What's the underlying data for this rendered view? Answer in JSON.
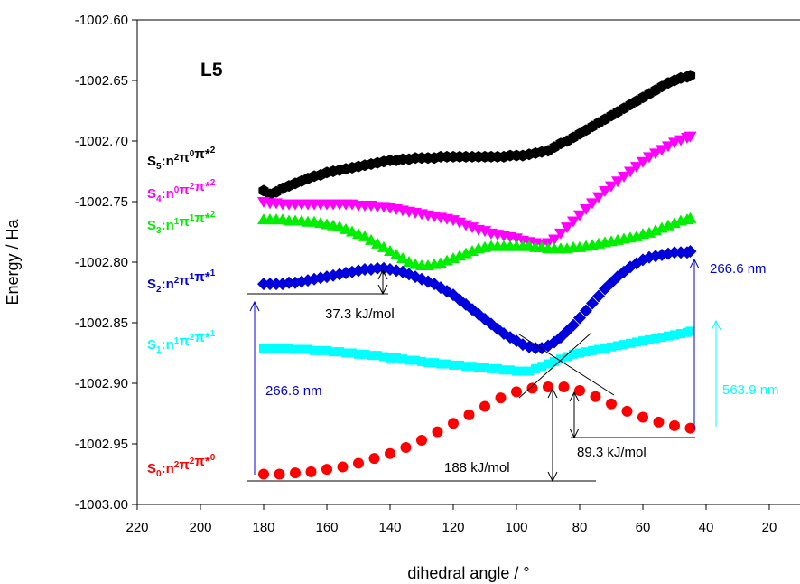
{
  "chart_data": {
    "type": "scatter",
    "title": "",
    "panel_label": "L5",
    "xlabel": "dihedral angle / °",
    "ylabel": "Energy / Ha",
    "xlim": [
      220,
      10
    ],
    "ylim": [
      -1003.0,
      -1002.6
    ],
    "x_reversed": true,
    "xticks": [
      220,
      200,
      180,
      160,
      140,
      120,
      100,
      80,
      60,
      40,
      20
    ],
    "xtick_labels": [
      "220",
      "200",
      "180",
      "160",
      "140",
      "120",
      "100",
      "80",
      "60",
      "40",
      "20"
    ],
    "yticks": [
      -1002.6,
      -1002.65,
      -1002.7,
      -1002.75,
      -1002.8,
      -1002.85,
      -1002.9,
      -1002.95,
      -1003.0
    ],
    "ytick_labels": [
      "-1002.60",
      "-1002.65",
      "-1002.70",
      "-1002.75",
      "-1002.80",
      "-1002.85",
      "-1002.90",
      "-1002.95",
      "-1003.00"
    ],
    "grid": false,
    "legend": "none",
    "series": [
      {
        "key": "S5",
        "label_main": "S",
        "label_sub": "5",
        "label_parts": [
          [
            ":n",
            "2"
          ],
          [
            "π",
            "0"
          ],
          [
            "π*",
            "2"
          ]
        ],
        "color": "#000000",
        "marker": "hexagon",
        "x": [
          180,
          178,
          176,
          174,
          172,
          170,
          168,
          166,
          164,
          162,
          160,
          158,
          156,
          154,
          152,
          150,
          148,
          146,
          144,
          142,
          140,
          138,
          136,
          134,
          132,
          130,
          128,
          126,
          124,
          122,
          120,
          118,
          116,
          114,
          112,
          110,
          108,
          106,
          104,
          102,
          100,
          98,
          96,
          94,
          92,
          90,
          88,
          86,
          84,
          82,
          80,
          78,
          76,
          74,
          72,
          70,
          68,
          66,
          64,
          62,
          60,
          58,
          56,
          54,
          52,
          50,
          48,
          46,
          45
        ],
        "y": [
          -1002.741,
          -1002.744,
          -1002.742,
          -1002.739,
          -1002.737,
          -1002.735,
          -1002.733,
          -1002.731,
          -1002.729,
          -1002.728,
          -1002.726,
          -1002.725,
          -1002.724,
          -1002.723,
          -1002.722,
          -1002.721,
          -1002.72,
          -1002.719,
          -1002.718,
          -1002.717,
          -1002.716,
          -1002.716,
          -1002.715,
          -1002.715,
          -1002.714,
          -1002.714,
          -1002.714,
          -1002.714,
          -1002.713,
          -1002.713,
          -1002.713,
          -1002.713,
          -1002.713,
          -1002.713,
          -1002.713,
          -1002.713,
          -1002.713,
          -1002.713,
          -1002.713,
          -1002.712,
          -1002.712,
          -1002.712,
          -1002.711,
          -1002.71,
          -1002.709,
          -1002.708,
          -1002.705,
          -1002.702,
          -1002.7,
          -1002.697,
          -1002.694,
          -1002.691,
          -1002.688,
          -1002.685,
          -1002.682,
          -1002.679,
          -1002.676,
          -1002.673,
          -1002.67,
          -1002.667,
          -1002.664,
          -1002.661,
          -1002.658,
          -1002.655,
          -1002.652,
          -1002.65,
          -1002.648,
          -1002.647,
          -1002.646
        ]
      },
      {
        "key": "S4",
        "label_main": "S",
        "label_sub": "4",
        "label_parts": [
          [
            ":n",
            "0"
          ],
          [
            "π",
            "2"
          ],
          [
            "π*",
            "2"
          ]
        ],
        "color": "#ff00ff",
        "marker": "triangle-down",
        "x": [
          180,
          178,
          176,
          174,
          172,
          170,
          168,
          166,
          164,
          162,
          160,
          158,
          156,
          154,
          152,
          150,
          148,
          146,
          144,
          142,
          140,
          138,
          136,
          134,
          132,
          130,
          128,
          126,
          124,
          122,
          120,
          118,
          116,
          114,
          112,
          110,
          108,
          106,
          104,
          102,
          100,
          98,
          96,
          94,
          92,
          90,
          88,
          86,
          84,
          82,
          80,
          78,
          76,
          74,
          72,
          70,
          68,
          66,
          64,
          62,
          60,
          58,
          56,
          54,
          52,
          50,
          48,
          46,
          45
        ],
        "y": [
          -1002.75,
          -1002.751,
          -1002.751,
          -1002.752,
          -1002.752,
          -1002.752,
          -1002.752,
          -1002.752,
          -1002.752,
          -1002.752,
          -1002.752,
          -1002.752,
          -1002.752,
          -1002.752,
          -1002.752,
          -1002.753,
          -1002.753,
          -1002.753,
          -1002.754,
          -1002.754,
          -1002.755,
          -1002.756,
          -1002.757,
          -1002.758,
          -1002.759,
          -1002.76,
          -1002.761,
          -1002.762,
          -1002.763,
          -1002.764,
          -1002.765,
          -1002.767,
          -1002.769,
          -1002.771,
          -1002.773,
          -1002.774,
          -1002.776,
          -1002.777,
          -1002.778,
          -1002.779,
          -1002.78,
          -1002.782,
          -1002.783,
          -1002.784,
          -1002.785,
          -1002.784,
          -1002.781,
          -1002.776,
          -1002.771,
          -1002.766,
          -1002.761,
          -1002.756,
          -1002.751,
          -1002.746,
          -1002.741,
          -1002.737,
          -1002.733,
          -1002.729,
          -1002.725,
          -1002.721,
          -1002.717,
          -1002.713,
          -1002.71,
          -1002.707,
          -1002.704,
          -1002.701,
          -1002.699,
          -1002.697,
          -1002.696
        ]
      },
      {
        "key": "S3",
        "label_main": "S",
        "label_sub": "3",
        "label_parts": [
          [
            ":n",
            "1"
          ],
          [
            "π",
            "1"
          ],
          [
            "π*",
            "2"
          ]
        ],
        "color": "#00ee00",
        "marker": "triangle-up",
        "x": [
          180,
          178,
          176,
          174,
          172,
          170,
          168,
          166,
          164,
          162,
          160,
          158,
          156,
          154,
          152,
          150,
          148,
          146,
          144,
          142,
          140,
          138,
          136,
          134,
          132,
          130,
          128,
          126,
          124,
          122,
          120,
          118,
          116,
          114,
          112,
          110,
          108,
          106,
          104,
          102,
          100,
          98,
          96,
          94,
          92,
          90,
          88,
          86,
          84,
          82,
          80,
          78,
          76,
          74,
          72,
          70,
          68,
          66,
          64,
          62,
          60,
          58,
          56,
          54,
          52,
          50,
          48,
          46,
          45
        ],
        "y": [
          -1002.765,
          -1002.765,
          -1002.765,
          -1002.765,
          -1002.766,
          -1002.766,
          -1002.766,
          -1002.767,
          -1002.767,
          -1002.768,
          -1002.769,
          -1002.77,
          -1002.771,
          -1002.773,
          -1002.775,
          -1002.777,
          -1002.779,
          -1002.782,
          -1002.785,
          -1002.788,
          -1002.791,
          -1002.794,
          -1002.797,
          -1002.8,
          -1002.802,
          -1002.803,
          -1002.803,
          -1002.802,
          -1002.801,
          -1002.799,
          -1002.797,
          -1002.795,
          -1002.793,
          -1002.791,
          -1002.789,
          -1002.788,
          -1002.787,
          -1002.787,
          -1002.787,
          -1002.787,
          -1002.787,
          -1002.787,
          -1002.787,
          -1002.788,
          -1002.788,
          -1002.789,
          -1002.789,
          -1002.789,
          -1002.789,
          -1002.788,
          -1002.788,
          -1002.787,
          -1002.786,
          -1002.785,
          -1002.784,
          -1002.783,
          -1002.782,
          -1002.781,
          -1002.78,
          -1002.779,
          -1002.777,
          -1002.776,
          -1002.774,
          -1002.772,
          -1002.77,
          -1002.768,
          -1002.766,
          -1002.765,
          -1002.764
        ]
      },
      {
        "key": "S2",
        "label_main": "S",
        "label_sub": "2",
        "label_parts": [
          [
            ":n",
            "2"
          ],
          [
            "π",
            "1"
          ],
          [
            "π*",
            "1"
          ]
        ],
        "color": "#0000dd",
        "marker": "diamond",
        "x": [
          180,
          178,
          176,
          174,
          172,
          170,
          168,
          166,
          164,
          162,
          160,
          158,
          156,
          154,
          152,
          150,
          148,
          146,
          144,
          142,
          140,
          138,
          136,
          134,
          132,
          130,
          128,
          126,
          124,
          122,
          120,
          118,
          116,
          114,
          112,
          110,
          108,
          106,
          104,
          102,
          100,
          98,
          96,
          94,
          92,
          90,
          88,
          86,
          84,
          82,
          80,
          78,
          76,
          74,
          72,
          70,
          68,
          66,
          64,
          62,
          60,
          58,
          56,
          54,
          52,
          50,
          48,
          46,
          45
        ],
        "y": [
          -1002.818,
          -1002.818,
          -1002.818,
          -1002.818,
          -1002.817,
          -1002.817,
          -1002.816,
          -1002.815,
          -1002.814,
          -1002.813,
          -1002.812,
          -1002.811,
          -1002.81,
          -1002.809,
          -1002.808,
          -1002.807,
          -1002.806,
          -1002.806,
          -1002.805,
          -1002.805,
          -1002.806,
          -1002.807,
          -1002.808,
          -1002.81,
          -1002.812,
          -1002.814,
          -1002.816,
          -1002.818,
          -1002.821,
          -1002.824,
          -1002.827,
          -1002.831,
          -1002.835,
          -1002.839,
          -1002.843,
          -1002.847,
          -1002.851,
          -1002.855,
          -1002.859,
          -1002.862,
          -1002.865,
          -1002.868,
          -1002.87,
          -1002.871,
          -1002.871,
          -1002.869,
          -1002.866,
          -1002.862,
          -1002.857,
          -1002.852,
          -1002.846,
          -1002.84,
          -1002.834,
          -1002.828,
          -1002.822,
          -1002.817,
          -1002.812,
          -1002.808,
          -1002.804,
          -1002.801,
          -1002.798,
          -1002.796,
          -1002.795,
          -1002.794,
          -1002.793,
          -1002.792,
          -1002.792,
          -1002.792,
          -1002.791
        ]
      },
      {
        "key": "S1",
        "label_main": "S",
        "label_sub": "1",
        "label_parts": [
          [
            ":n",
            "1"
          ],
          [
            "π",
            "2"
          ],
          [
            "π*",
            "1"
          ]
        ],
        "color": "#00ffff",
        "marker": "square",
        "x": [
          180,
          178,
          176,
          174,
          172,
          170,
          168,
          166,
          164,
          162,
          160,
          158,
          156,
          154,
          152,
          150,
          148,
          146,
          144,
          142,
          140,
          138,
          136,
          134,
          132,
          130,
          128,
          126,
          124,
          122,
          120,
          118,
          116,
          114,
          112,
          110,
          108,
          106,
          104,
          102,
          100,
          98,
          96,
          94,
          92,
          90,
          88,
          86,
          84,
          82,
          80,
          78,
          76,
          74,
          72,
          70,
          68,
          66,
          64,
          62,
          60,
          58,
          56,
          54,
          52,
          50,
          48,
          46,
          45
        ],
        "y": [
          -1002.871,
          -1002.871,
          -1002.871,
          -1002.871,
          -1002.871,
          -1002.872,
          -1002.872,
          -1002.872,
          -1002.873,
          -1002.873,
          -1002.873,
          -1002.874,
          -1002.874,
          -1002.875,
          -1002.875,
          -1002.876,
          -1002.876,
          -1002.877,
          -1002.877,
          -1002.878,
          -1002.879,
          -1002.879,
          -1002.88,
          -1002.881,
          -1002.881,
          -1002.882,
          -1002.883,
          -1002.883,
          -1002.884,
          -1002.884,
          -1002.885,
          -1002.885,
          -1002.886,
          -1002.886,
          -1002.887,
          -1002.887,
          -1002.888,
          -1002.888,
          -1002.889,
          -1002.889,
          -1002.89,
          -1002.89,
          -1002.89,
          -1002.888,
          -1002.886,
          -1002.884,
          -1002.882,
          -1002.88,
          -1002.878,
          -1002.876,
          -1002.875,
          -1002.874,
          -1002.873,
          -1002.872,
          -1002.871,
          -1002.87,
          -1002.869,
          -1002.868,
          -1002.867,
          -1002.866,
          -1002.865,
          -1002.864,
          -1002.863,
          -1002.862,
          -1002.861,
          -1002.86,
          -1002.859,
          -1002.858,
          -1002.857
        ]
      },
      {
        "key": "S0",
        "label_main": "S",
        "label_sub": "0",
        "label_parts": [
          [
            ":n",
            "2"
          ],
          [
            "π",
            "2"
          ],
          [
            "π*",
            "0"
          ]
        ],
        "color": "#ff0000",
        "marker": "circle",
        "x": [
          180,
          175,
          170,
          165,
          160,
          155,
          150,
          145,
          140,
          135,
          130,
          125,
          120,
          115,
          110,
          105,
          100,
          95,
          90,
          85,
          80,
          75,
          70,
          65,
          60,
          55,
          50,
          45
        ],
        "y": [
          -1002.975,
          -1002.975,
          -1002.974,
          -1002.973,
          -1002.971,
          -1002.969,
          -1002.966,
          -1002.962,
          -1002.958,
          -1002.953,
          -1002.947,
          -1002.94,
          -1002.933,
          -1002.926,
          -1002.919,
          -1002.912,
          -1002.907,
          -1002.904,
          -1002.903,
          -1002.903,
          -1002.906,
          -1002.911,
          -1002.917,
          -1002.923,
          -1002.928,
          -1002.932,
          -1002.935,
          -1002.937
        ]
      }
    ],
    "annotations": [
      {
        "key": "kj_373",
        "text": "37.3 kJ/mol",
        "color": "#000000"
      },
      {
        "key": "nm_left",
        "text": "266.6 nm",
        "color": "#0000dd"
      },
      {
        "key": "kj_188",
        "text": "188 kJ/mol",
        "color": "#000000"
      },
      {
        "key": "kj_893",
        "text": "89.3 kJ/mol",
        "color": "#000000"
      },
      {
        "key": "nm_right",
        "text": "266.6 nm",
        "color": "#0000dd"
      },
      {
        "key": "nm_cyan",
        "text": "563.9 nm",
        "color": "#00ffff"
      }
    ]
  }
}
